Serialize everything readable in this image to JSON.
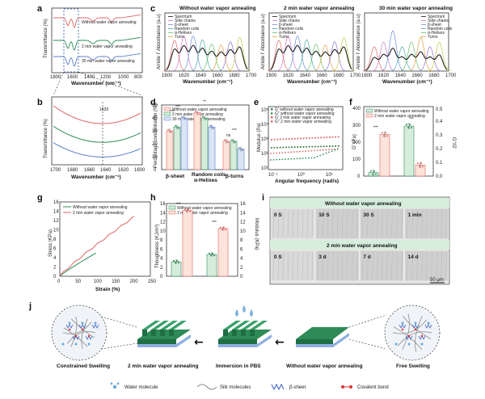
{
  "panels": {
    "a": {
      "label": "a",
      "ylabel": "Transmittance (%)",
      "xlabel": "Wavenumber (cm⁻¹)",
      "xticks": [
        "1800",
        "1600",
        "1400",
        "1200",
        "1000",
        "800"
      ],
      "series": [
        {
          "name": "Without water vapor annealing",
          "color": "#e06666"
        },
        {
          "name": "2 min water vapor annealing",
          "color": "#2e8b57"
        },
        {
          "name": "30 min water vapor annealing",
          "color": "#5b7fc7"
        }
      ]
    },
    "b": {
      "label": "b",
      "ylabel": "Transmittance (%)",
      "xlabel": "Wavenumber (cm⁻¹)",
      "xticks": [
        "1700",
        "1680",
        "1660",
        "1640",
        "1620",
        "1600"
      ],
      "peak": "1639"
    },
    "c": {
      "label": "c",
      "ylabel": "Amide I' Absorbance (a.u)",
      "xlabel": "Wavenumber (cm⁻¹)",
      "xticks": [
        "1600",
        "1620",
        "1640",
        "1660",
        "1680",
        "1700"
      ],
      "legend": [
        "Spectrum",
        "Side chains",
        "β-sheet",
        "Random coils",
        "α-Helixes",
        "Turns"
      ],
      "titles": [
        "Without water vapor annealing",
        "2 min water vapor annealing",
        "30 min water vapor annealing"
      ]
    },
    "d": {
      "label": "d",
      "ylabel": "Percentage concentration (%)",
      "yticks": [
        "0",
        "10",
        "20",
        "30",
        "40",
        "50"
      ],
      "categories": [
        "β-sheet",
        "Random coils\nα-Helixes",
        "β-turns"
      ],
      "cat1": "β-sheet",
      "cat2a": "Random coils",
      "cat2b": "α-Helixes",
      "cat3": "β-turns",
      "sig": [
        "***",
        "***",
        "*",
        "**",
        "ns",
        "***"
      ],
      "ns": "ns"
    },
    "e": {
      "label": "e",
      "ylabel": "Modulus (Pa)",
      "xlabel": "Angular frequency (rad/s)",
      "legend": [
        "G' without water vapor annealing",
        "G\" without water vapor annealing",
        "G' 2 min water vapor annealing",
        "G\" 2 min water vapor annealing"
      ],
      "yticks": [
        "10⁵",
        "10⁴",
        "10³",
        "10²",
        "10¹"
      ],
      "xticks": [
        "10⁻¹",
        "10⁰",
        "10¹"
      ]
    },
    "f": {
      "label": "f",
      "ylabel": "G' (Pa)",
      "ylabel2": "G\"/G'",
      "yticks": [
        "0",
        "100",
        "200",
        "300",
        "400"
      ],
      "y2ticks": [
        "0.0",
        "0.1",
        "0.2",
        "0.3",
        "0.4",
        "0.5"
      ],
      "sig": "***"
    },
    "g": {
      "label": "g",
      "ylabel": "Stress (KPa)",
      "xlabel": "Strain (%)",
      "yticks": [
        "0",
        "2",
        "4",
        "6",
        "8",
        "10",
        "12",
        "14",
        "16"
      ],
      "xticks": [
        "0",
        "50",
        "100",
        "150",
        "200",
        "250"
      ]
    },
    "h": {
      "label": "h",
      "ylabel": "Thoughness (KJ/m³)",
      "ylabel2": "Modulus (KPa)",
      "yticks": [
        "0",
        "2",
        "4",
        "6",
        "8",
        "10",
        "12",
        "14",
        "16"
      ],
      "sig": "***"
    },
    "i": {
      "label": "i",
      "title1": "Without water vapor annealing",
      "title2": "2 min water vapor annealing",
      "row1": [
        "0 S",
        "10 S",
        "30 S",
        "1 min"
      ],
      "row2": [
        "0 S",
        "3 d",
        "7 d",
        "14 d"
      ],
      "scale": "50 μm"
    },
    "j": {
      "label": "j",
      "left_caption": "Constrained Swelling",
      "right_caption": "Free Swelling",
      "mid1": "2 min water vapor annealing",
      "mid2": "Immersion in PBS",
      "mid3": "Without water vapor annealing",
      "legend": [
        "Water molecule",
        "Silk molecules",
        "β-sheet",
        "Covalent bond"
      ]
    }
  },
  "legend_without": "Without water vapor annealing",
  "legend_2min": "2 min water vapor annealing",
  "legend_30min": "30 min water vapor annealing",
  "colors": {
    "red": "#e06666",
    "green": "#2e8b57",
    "blue": "#5b7fc7",
    "pink_fill": "#fde3d9",
    "green_fill": "#d6eddc",
    "blue_fill": "#dbe4f5"
  },
  "chart_data": [
    {
      "type": "bar",
      "title": "",
      "categories": [
        "β-sheet",
        "Random coils α-Helixes",
        "β-turns"
      ],
      "series": [
        {
          "name": "Without water vapor annealing",
          "values": [
            30,
            44,
            22
          ]
        },
        {
          "name": "2 min water vapor annealing",
          "values": [
            33,
            40,
            22
          ]
        },
        {
          "name": "30 min water vapor annealing",
          "values": [
            40,
            33,
            16
          ]
        }
      ],
      "ylabel": "Percentage concentration (%)",
      "ylim": [
        0,
        50
      ]
    },
    {
      "type": "bar",
      "title": "",
      "categories": [
        "G' (Pa)",
        "G\"/G'"
      ],
      "series": [
        {
          "name": "Without water vapor annealing",
          "values": [
            20,
            0.36
          ]
        },
        {
          "name": "2 min water vapor annealing",
          "values": [
            240,
            0.08
          ]
        }
      ],
      "ylabel": "G' (Pa)",
      "ylim": [
        0,
        400
      ]
    },
    {
      "type": "bar",
      "title": "",
      "categories": [
        "Thoughness",
        "Modulus"
      ],
      "series": [
        {
          "name": "Without water vapor annealing",
          "values": [
            3.2,
            4.8
          ]
        },
        {
          "name": "2 min water vapor annealing",
          "values": [
            14.5,
            10.5
          ]
        }
      ],
      "ylabel": "Thoughness (KJ/m³)",
      "ylim": [
        0,
        16
      ]
    },
    {
      "type": "line",
      "title": "",
      "series": [
        {
          "name": "Without water vapor annealing",
          "x": [
            0,
            100
          ],
          "y": [
            0,
            5
          ]
        },
        {
          "name": "2 min water vapor annealing",
          "x": [
            0,
            205
          ],
          "y": [
            0,
            12.8
          ]
        }
      ],
      "xlabel": "Strain (%)",
      "ylabel": "Stress (KPa)",
      "xlim": [
        0,
        250
      ],
      "ylim": [
        0,
        16
      ]
    }
  ]
}
